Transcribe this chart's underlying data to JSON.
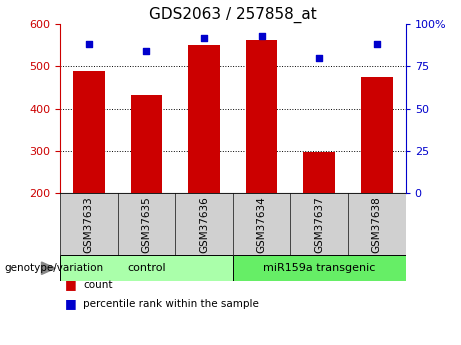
{
  "title": "GDS2063 / 257858_at",
  "categories": [
    "GSM37633",
    "GSM37635",
    "GSM37636",
    "GSM37634",
    "GSM37637",
    "GSM37638"
  ],
  "bar_values": [
    490,
    432,
    550,
    563,
    298,
    476
  ],
  "bar_bottom": 200,
  "scatter_values": [
    88,
    84,
    92,
    93,
    80,
    88
  ],
  "bar_color": "#cc0000",
  "scatter_color": "#0000cc",
  "ylim_left": [
    200,
    600
  ],
  "ylim_right": [
    0,
    100
  ],
  "yticks_left": [
    200,
    300,
    400,
    500,
    600
  ],
  "yticks_right": [
    0,
    25,
    50,
    75,
    100
  ],
  "yticklabels_right": [
    "0",
    "25",
    "50",
    "75",
    "100%"
  ],
  "grid_values": [
    300,
    400,
    500
  ],
  "control_label": "control",
  "transgenic_label": "miR159a transgenic",
  "genotype_label": "genotype/variation",
  "legend_count": "count",
  "legend_percentile": "percentile rank within the sample",
  "control_color": "#aaffaa",
  "transgenic_color": "#66ee66",
  "bar_color_legend": "#cc0000",
  "scatter_color_legend": "#0000cc",
  "title_fontsize": 11,
  "tick_fontsize": 8,
  "xtick_fontsize": 7.5,
  "legend_fontsize": 7.5,
  "genotype_fontsize": 7.5,
  "group_label_fontsize": 8,
  "bar_width": 0.55,
  "n_control": 3,
  "n_transgenic": 3
}
